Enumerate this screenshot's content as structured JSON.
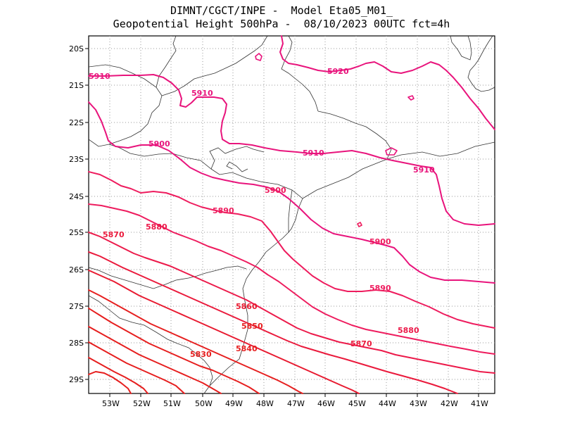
{
  "header": {
    "line1": "DIMNT/CGCT/INPE -  Model Eta05_M01_",
    "line2": "Geopotential Height 500hPa -  08/10/2023 00UTC fct=4h"
  },
  "map": {
    "lat_labels": [
      "20S",
      "21S",
      "22S",
      "23S",
      "24S",
      "25S",
      "26S",
      "27S",
      "28S",
      "29S"
    ],
    "lon_labels": [
      "53W",
      "52W",
      "51W",
      "50W",
      "49W",
      "48W",
      "47W",
      "46W",
      "45W",
      "44W",
      "43W",
      "42W",
      "41W"
    ],
    "contour_labels": [
      "5910",
      "5920",
      "5910",
      "5900",
      "5910",
      "5910",
      "5900",
      "5890",
      "5880",
      "5870",
      "5900",
      "5890",
      "5860",
      "5850",
      "5880",
      "5870",
      "5840",
      "5830"
    ],
    "colors": {
      "c5920": "#e8147c",
      "c5910": "#e8147c",
      "c5900": "#ee1c5e",
      "c5890": "#ee1c5e",
      "c5880": "#ec1a4a",
      "c5870": "#ea1a3c",
      "c5860": "#e81a30",
      "low": "#e61e1e",
      "coast": "#333333",
      "grid": "#999999"
    }
  }
}
